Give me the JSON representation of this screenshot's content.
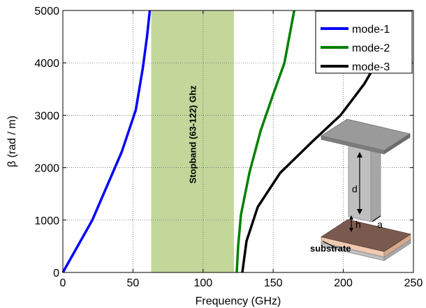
{
  "chart_data": {
    "type": "line",
    "title": "",
    "xlabel": "Frequency (GHz)",
    "ylabel": "β (rad / m)",
    "xlim": [
      0,
      250
    ],
    "ylim": [
      0,
      5000
    ],
    "xticks": [
      0,
      50,
      100,
      150,
      200,
      250
    ],
    "yticks": [
      0,
      1000,
      2000,
      3000,
      4000,
      5000
    ],
    "xtick_labels": [
      "0",
      "50",
      "100",
      "150",
      "200",
      "250"
    ],
    "ytick_labels": [
      "0",
      "1000",
      "2000",
      "3000",
      "4000",
      "5000"
    ],
    "grid": true,
    "legend_position": "top-right",
    "series": [
      {
        "name": "mode-1",
        "color": "#0000ff",
        "points": [
          [
            0,
            0
          ],
          [
            21,
            1000
          ],
          [
            42,
            2300
          ],
          [
            52,
            3100
          ],
          [
            57,
            3900
          ],
          [
            60,
            4500
          ],
          [
            62,
            5000
          ]
        ]
      },
      {
        "name": "mode-2",
        "color": "#008000",
        "points": [
          [
            124,
            0
          ],
          [
            125,
            500
          ],
          [
            127,
            1100
          ],
          [
            133,
            1900
          ],
          [
            141,
            2700
          ],
          [
            150,
            3400
          ],
          [
            158,
            4000
          ],
          [
            165,
            5000
          ]
        ]
      },
      {
        "name": "mode-3",
        "color": "#000000",
        "points": [
          [
            128,
            0
          ],
          [
            131,
            600
          ],
          [
            139,
            1250
          ],
          [
            155,
            1900
          ],
          [
            178,
            2500
          ],
          [
            198,
            3000
          ],
          [
            215,
            3600
          ],
          [
            228,
            4200
          ],
          [
            236,
            4700
          ],
          [
            240,
            5000
          ]
        ]
      }
    ],
    "stopband": {
      "x_start": 63,
      "x_end": 122,
      "color": "#c4d79b",
      "label": "Stopband (63-122) Ghz"
    },
    "inset": {
      "labels": [
        "d",
        "h",
        "a",
        "substrate"
      ]
    }
  }
}
